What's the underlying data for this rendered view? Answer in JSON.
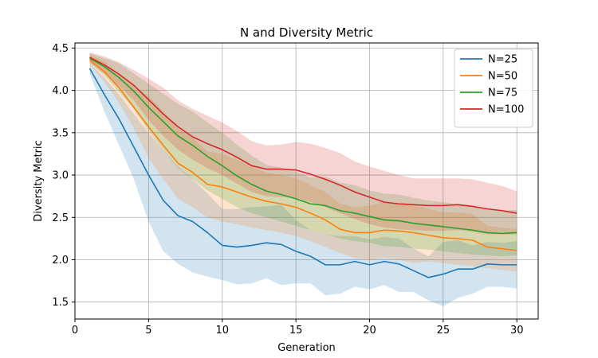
{
  "chart_data": {
    "type": "line",
    "title": "N and Diversity Metric",
    "xlabel": "Generation",
    "ylabel": "Diversity Metric",
    "xlim": [
      0,
      31.45
    ],
    "ylim": [
      1.3,
      4.56
    ],
    "xticks": [
      0,
      5,
      10,
      15,
      20,
      25,
      30
    ],
    "yticks": [
      1.5,
      2.0,
      2.5,
      3.0,
      3.5,
      4.0,
      4.5
    ],
    "grid": true,
    "legend_position": "top-right",
    "x": [
      1,
      2,
      3,
      4,
      5,
      6,
      7,
      8,
      9,
      10,
      11,
      12,
      13,
      14,
      15,
      16,
      17,
      18,
      19,
      20,
      21,
      22,
      23,
      24,
      25,
      26,
      27,
      28,
      29,
      30
    ],
    "series": [
      {
        "name": "N=25",
        "color": "#1f77b4",
        "values": [
          4.26,
          3.95,
          3.66,
          3.33,
          3.0,
          2.7,
          2.52,
          2.45,
          2.32,
          2.17,
          2.15,
          2.17,
          2.2,
          2.18,
          2.1,
          2.04,
          1.94,
          1.94,
          1.98,
          1.94,
          1.98,
          1.95,
          1.87,
          1.79,
          1.83,
          1.89,
          1.89,
          1.95,
          1.94,
          1.94
        ],
        "lower": [
          4.2,
          3.75,
          3.35,
          2.95,
          2.45,
          2.1,
          1.95,
          1.85,
          1.8,
          1.76,
          1.71,
          1.72,
          1.78,
          1.7,
          1.72,
          1.72,
          1.58,
          1.6,
          1.68,
          1.65,
          1.7,
          1.62,
          1.62,
          1.52,
          1.45,
          1.55,
          1.6,
          1.68,
          1.68,
          1.66
        ],
        "upper": [
          4.32,
          4.15,
          3.95,
          3.72,
          3.5,
          3.3,
          3.1,
          2.95,
          2.78,
          2.6,
          2.6,
          2.62,
          2.63,
          2.65,
          2.47,
          2.35,
          2.3,
          2.28,
          2.28,
          2.24,
          2.27,
          2.25,
          2.13,
          2.04,
          2.21,
          2.23,
          2.17,
          2.21,
          2.2,
          2.22
        ]
      },
      {
        "name": "N=50",
        "color": "#ff7f0e",
        "values": [
          4.36,
          4.22,
          4.03,
          3.8,
          3.57,
          3.35,
          3.14,
          3.03,
          2.89,
          2.86,
          2.8,
          2.74,
          2.69,
          2.66,
          2.62,
          2.55,
          2.47,
          2.36,
          2.32,
          2.32,
          2.35,
          2.34,
          2.32,
          2.29,
          2.26,
          2.25,
          2.23,
          2.15,
          2.13,
          2.11
        ],
        "lower": [
          4.3,
          4.1,
          3.85,
          3.55,
          3.2,
          2.95,
          2.72,
          2.62,
          2.5,
          2.45,
          2.42,
          2.38,
          2.35,
          2.32,
          2.28,
          2.22,
          2.15,
          2.08,
          2.02,
          2.0,
          2.02,
          2.0,
          1.96,
          1.98,
          1.96,
          1.94,
          1.92,
          1.9,
          1.88,
          1.86
        ],
        "upper": [
          4.42,
          4.34,
          4.2,
          4.05,
          3.93,
          3.75,
          3.55,
          3.44,
          3.28,
          3.25,
          3.18,
          3.1,
          3.03,
          3.0,
          2.96,
          2.88,
          2.8,
          2.66,
          2.62,
          2.64,
          2.68,
          2.66,
          2.64,
          2.6,
          2.56,
          2.56,
          2.54,
          2.4,
          2.38,
          2.36
        ]
      },
      {
        "name": "N=75",
        "color": "#2ca02c",
        "values": [
          4.38,
          4.28,
          4.15,
          3.99,
          3.8,
          3.63,
          3.46,
          3.35,
          3.22,
          3.11,
          2.99,
          2.89,
          2.81,
          2.77,
          2.72,
          2.66,
          2.64,
          2.58,
          2.55,
          2.51,
          2.47,
          2.46,
          2.43,
          2.41,
          2.39,
          2.37,
          2.35,
          2.32,
          2.31,
          2.32
        ],
        "lower": [
          4.32,
          4.18,
          3.98,
          3.78,
          3.52,
          3.3,
          3.08,
          2.95,
          2.82,
          2.72,
          2.62,
          2.55,
          2.5,
          2.45,
          2.4,
          2.35,
          2.3,
          2.25,
          2.22,
          2.2,
          2.16,
          2.15,
          2.13,
          2.12,
          2.1,
          2.08,
          2.06,
          2.05,
          2.04,
          2.05
        ],
        "upper": [
          4.44,
          4.38,
          4.32,
          4.2,
          4.08,
          3.96,
          3.84,
          3.75,
          3.62,
          3.5,
          3.36,
          3.23,
          3.12,
          3.09,
          3.04,
          2.97,
          2.98,
          2.91,
          2.88,
          2.82,
          2.78,
          2.77,
          2.73,
          2.7,
          2.68,
          2.66,
          2.64,
          2.59,
          2.58,
          2.59
        ]
      },
      {
        "name": "N=100",
        "color": "#d62728",
        "values": [
          4.39,
          4.3,
          4.19,
          4.06,
          3.89,
          3.72,
          3.57,
          3.45,
          3.37,
          3.3,
          3.21,
          3.11,
          3.07,
          3.07,
          3.06,
          3.01,
          2.95,
          2.88,
          2.8,
          2.74,
          2.68,
          2.66,
          2.65,
          2.64,
          2.64,
          2.65,
          2.63,
          2.6,
          2.58,
          2.55
        ],
        "lower": [
          4.33,
          4.2,
          4.05,
          3.88,
          3.65,
          3.46,
          3.3,
          3.18,
          3.08,
          3.0,
          2.9,
          2.8,
          2.75,
          2.74,
          2.73,
          2.68,
          2.62,
          2.55,
          2.48,
          2.42,
          2.38,
          2.36,
          2.35,
          2.34,
          2.34,
          2.35,
          2.33,
          2.3,
          2.3,
          2.3
        ],
        "upper": [
          4.45,
          4.4,
          4.33,
          4.24,
          4.14,
          4.03,
          3.88,
          3.78,
          3.7,
          3.62,
          3.52,
          3.4,
          3.35,
          3.36,
          3.39,
          3.37,
          3.32,
          3.26,
          3.16,
          3.1,
          3.05,
          3.0,
          2.96,
          2.96,
          2.96,
          2.96,
          2.95,
          2.91,
          2.87,
          2.81
        ]
      }
    ]
  }
}
